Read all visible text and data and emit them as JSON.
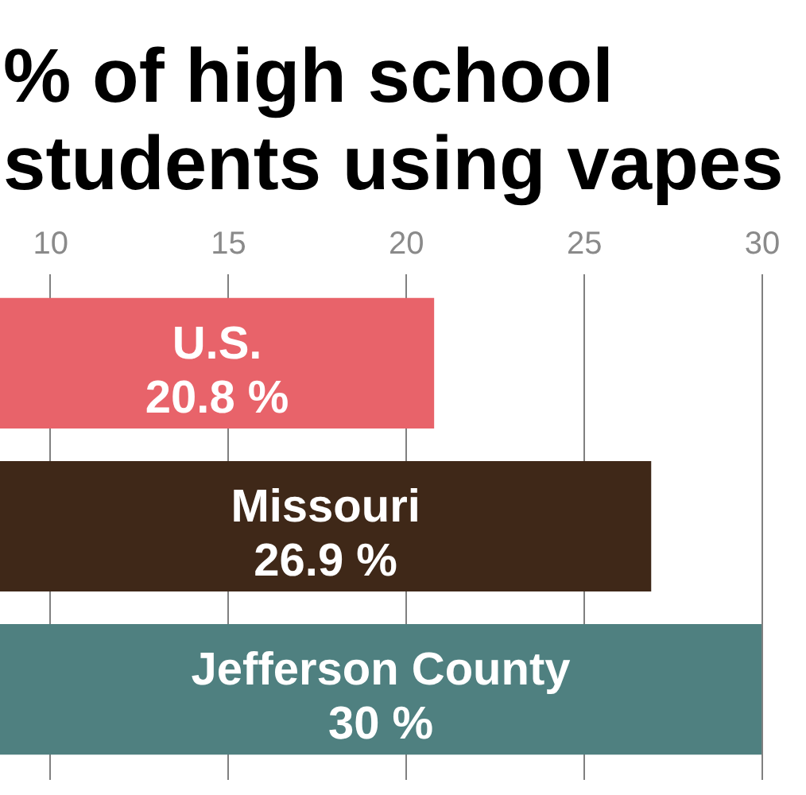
{
  "chart_data": {
    "type": "bar",
    "orientation": "horizontal",
    "title": "% of high school students using vapes",
    "categories": [
      "U.S.",
      "Missouri",
      "Jefferson County"
    ],
    "values": [
      20.8,
      26.9,
      30
    ],
    "colors": [
      "#e8636a",
      "#3f2818",
      "#4f8080"
    ],
    "value_labels": [
      "20.8 %",
      "26.9 %",
      "30 %"
    ],
    "xlim": [
      8.6,
      31.25
    ],
    "xticks": [
      10,
      15,
      20,
      25,
      30
    ],
    "grid": "x",
    "tick_labels": "x"
  }
}
